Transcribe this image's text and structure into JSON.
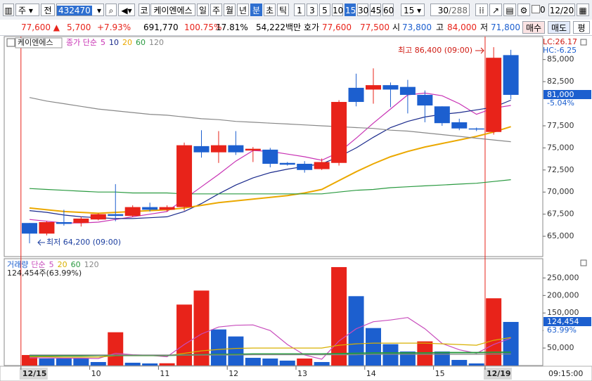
{
  "toolbar": {
    "market": "주",
    "scope": "전",
    "code": "432470",
    "market_short": "코",
    "name": "케이엔에스",
    "periods": [
      "일",
      "주",
      "월",
      "년",
      "분",
      "초",
      "틱"
    ],
    "selected_period": "분",
    "intervals": [
      "1",
      "3",
      "5",
      "10",
      "15",
      "30",
      "45",
      "60"
    ],
    "selected_interval": "15",
    "interval_select": "15",
    "count": "30",
    "total": "/288",
    "check_value": "0",
    "date": "12/20"
  },
  "info": {
    "price": "77,600 ▲",
    "change": "5,700",
    "change_rate": "+7.93%",
    "volume": "691,770",
    "volume_rate": "100.75%",
    "turnover": "17.81%",
    "amount": "54,222백만",
    "quote_label": "호가",
    "ask": "77,600",
    "bid": "77,500",
    "open_label": "시",
    "open": "73,800",
    "high_label": "고",
    "high": "84,000",
    "low_label": "저",
    "low": "71,800",
    "buy": "매수",
    "sell": "매도",
    "avg": "평"
  },
  "chart_data": [
    {
      "type": "candlestick",
      "title": "케이엔에스",
      "legend_prefix": "종가 단순",
      "categories": [
        "12/15",
        null,
        null,
        null,
        "10",
        null,
        null,
        null,
        "11",
        null,
        null,
        null,
        "12",
        null,
        null,
        null,
        "13",
        null,
        null,
        null,
        "14",
        null,
        null,
        null,
        "15",
        null,
        null,
        "12/19",
        null
      ],
      "open": [
        66500,
        65300,
        66600,
        66500,
        66900,
        67500,
        67300,
        68300,
        68000,
        68300,
        75200,
        74500,
        75300,
        74700,
        74800,
        73300,
        73200,
        72600,
        73300,
        81800,
        81600,
        82100,
        81900,
        81000,
        79700,
        77900,
        77200,
        76800,
        85500
      ],
      "high": [
        66500,
        66700,
        68000,
        67200,
        67600,
        70900,
        68500,
        68800,
        68500,
        75600,
        77000,
        76900,
        76900,
        75100,
        75000,
        73400,
        73500,
        73800,
        80400,
        83400,
        84000,
        82400,
        82700,
        81500,
        79700,
        78300,
        77300,
        86400,
        86100
      ],
      "low": [
        64200,
        65100,
        66200,
        66100,
        66800,
        66700,
        67200,
        67800,
        67800,
        67900,
        73900,
        73300,
        74200,
        73400,
        72800,
        73000,
        72200,
        72500,
        73000,
        79700,
        80000,
        79600,
        78900,
        77900,
        77500,
        77000,
        76900,
        76500,
        80500
      ],
      "close": [
        65300,
        66600,
        66400,
        67000,
        67500,
        67300,
        68300,
        68000,
        68300,
        75300,
        74500,
        75300,
        74500,
        74900,
        73200,
        73100,
        72500,
        73400,
        80200,
        80200,
        82100,
        81600,
        81000,
        79800,
        77800,
        77200,
        77100,
        85200,
        81000
      ],
      "up_color": "#e8231a",
      "down_color": "#1c5fcf",
      "series": [
        {
          "name": "5",
          "color": "#c832b4",
          "values": [
            66900,
            66700,
            66500,
            66500,
            66600,
            66900,
            67200,
            67500,
            67800,
            69200,
            70600,
            72000,
            73500,
            74700,
            74600,
            74300,
            74000,
            73600,
            74500,
            76100,
            77800,
            79400,
            81000,
            81200,
            80900,
            80000,
            78800,
            79500,
            79800
          ]
        },
        {
          "name": "10",
          "color": "#1a2a8c",
          "values": [
            67900,
            67700,
            67400,
            67200,
            67100,
            67000,
            67000,
            67100,
            67200,
            67800,
            68700,
            69800,
            70800,
            71600,
            72200,
            72600,
            72900,
            73200,
            74000,
            75000,
            76200,
            77300,
            78000,
            78500,
            78800,
            79000,
            79300,
            79600,
            80400
          ]
        },
        {
          "name": "20",
          "color": "#eba800",
          "values": [
            68200,
            68000,
            67800,
            67700,
            67600,
            67700,
            67800,
            67900,
            68000,
            68200,
            68500,
            68800,
            69000,
            69200,
            69400,
            69600,
            69900,
            70300,
            71300,
            72300,
            73200,
            74000,
            74600,
            75100,
            75500,
            75900,
            76300,
            76800,
            77400
          ]
        },
        {
          "name": "60",
          "color": "#2a9a40",
          "values": [
            70400,
            70300,
            70200,
            70100,
            70000,
            70000,
            69900,
            69900,
            69900,
            69800,
            69800,
            69800,
            69800,
            69800,
            69800,
            69800,
            69800,
            69800,
            70000,
            70200,
            70300,
            70500,
            70600,
            70700,
            70800,
            70900,
            71000,
            71200,
            71400
          ]
        },
        {
          "name": "120",
          "color": "#888888",
          "values": [
            80700,
            80300,
            80000,
            79700,
            79400,
            79200,
            79000,
            78800,
            78700,
            78500,
            78300,
            78200,
            78000,
            77900,
            77800,
            77700,
            77600,
            77500,
            77400,
            77300,
            77200,
            77000,
            76900,
            76700,
            76500,
            76300,
            76100,
            75900,
            75700
          ]
        }
      ],
      "ylim": [
        62700,
        87600
      ],
      "yticks": [
        {
          "value": 65000,
          "label": "65,000"
        },
        {
          "value": 67500,
          "label": "67,500"
        },
        {
          "value": 70000,
          "label": "70,000"
        },
        {
          "value": 72500,
          "label": "72,500"
        },
        {
          "value": 75000,
          "label": "75,000"
        },
        {
          "value": 77500,
          "label": "77,500"
        },
        {
          "value": 82500,
          "label": "82,500"
        },
        {
          "value": 85000,
          "label": "85,000"
        }
      ],
      "annotations": [
        "최고 86,400 (09:00)",
        "최저 64,200 (09:00)"
      ],
      "lc": "LC:26.17",
      "hc": "HC:-6.25",
      "last_label": "81,000",
      "last_rate": "-5.04%",
      "time_label": "09:15:00"
    },
    {
      "type": "bar",
      "title": "거래량",
      "legend_prefix": "단순",
      "summary": "124,454주(63.99%)",
      "values": [
        30000,
        20000,
        20000,
        20000,
        10000,
        95000,
        8000,
        6000,
        6500,
        174000,
        214000,
        103000,
        83000,
        22000,
        20000,
        14000,
        20000,
        10000,
        281000,
        198000,
        107000,
        61000,
        40000,
        69000,
        40000,
        16000,
        6000,
        192000,
        124454
      ],
      "up_color": "#e8231a",
      "down_color": "#1c5fcf",
      "series": [
        {
          "name": "5",
          "color": "#c84cbc",
          "values": [
            22000,
            22000,
            21000,
            21000,
            20000,
            35000,
            31000,
            29000,
            25000,
            60000,
            90000,
            110000,
            115000,
            116000,
            100000,
            60000,
            30000,
            18000,
            70000,
            105000,
            125000,
            130000,
            137000,
            105000,
            63000,
            45000,
            35000,
            60000,
            78000
          ]
        },
        {
          "name": "20",
          "color": "#d8b000",
          "values": [
            25000,
            25000,
            24000,
            24000,
            24000,
            28000,
            28000,
            28000,
            28000,
            35000,
            42000,
            46000,
            49000,
            50000,
            50000,
            50000,
            50000,
            50000,
            58000,
            62000,
            64000,
            64000,
            64000,
            64000,
            62000,
            60000,
            58000,
            72000,
            80000
          ]
        },
        {
          "name": "60",
          "color": "#2a9a40",
          "values": [
            28000,
            28000,
            28000,
            28000,
            29000,
            29000,
            29000,
            29000,
            29000,
            30000,
            31000,
            32000,
            32000,
            33000,
            33000,
            33000,
            33000,
            33000,
            34000,
            35000,
            36000,
            36000,
            36000,
            36000,
            37000,
            37000,
            37000,
            38000,
            38000
          ]
        },
        {
          "name": "120",
          "color": "#888888",
          "values": [
            30000,
            30000,
            30000,
            30000,
            30000,
            30000,
            30000,
            30000,
            30000,
            30000,
            30000,
            30000,
            30000,
            31000,
            31000,
            31000,
            31000,
            31000,
            31000,
            31000,
            32000,
            32000,
            32000,
            32000,
            32000,
            32000,
            32000,
            33000,
            33000
          ]
        }
      ],
      "ylim": [
        0,
        305000
      ],
      "yticks": [
        {
          "value": 50000,
          "label": "50,000"
        },
        {
          "value": 100000,
          "label": "100,000"
        },
        {
          "value": 150000,
          "label": "150,000"
        },
        {
          "value": 200000,
          "label": "200,000"
        },
        {
          "value": 250000,
          "label": "250,000"
        }
      ],
      "last_label": "124,454",
      "last_rate": "63.99%"
    }
  ]
}
